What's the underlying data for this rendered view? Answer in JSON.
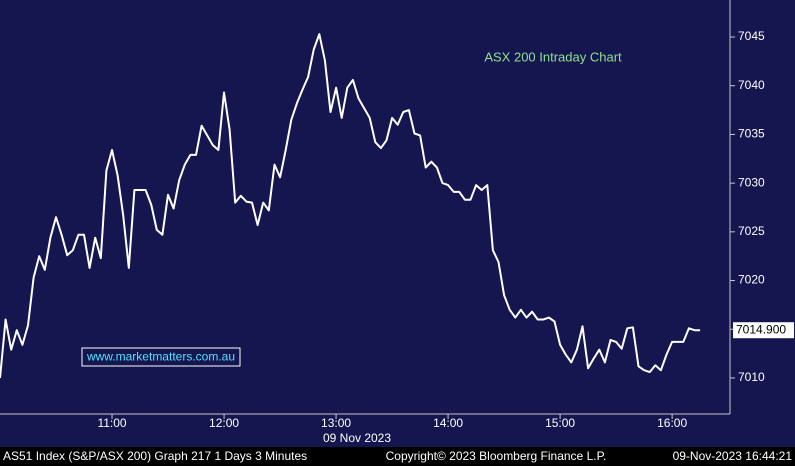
{
  "chart_data": {
    "type": "line",
    "annotation": "ASX 200 Intraday Chart",
    "watermark": "www.marketmatters.com.au",
    "date_label": "09 Nov 2023",
    "footer": {
      "left": "AS51 Index (S&P/ASX 200) Graph 217 1 Days 3 Minutes",
      "center": "Copyright© 2023 Bloomberg Finance L.P.",
      "right": "09-Nov-2023 16:44:21"
    },
    "color": "#ffffff",
    "x": [
      600,
      603,
      606,
      609,
      612,
      615,
      618,
      621,
      624,
      627,
      630,
      633,
      636,
      639,
      642,
      645,
      648,
      651,
      654,
      657,
      660,
      663,
      666,
      669,
      672,
      675,
      678,
      681,
      684,
      687,
      690,
      693,
      696,
      699,
      702,
      705,
      708,
      711,
      714,
      717,
      720,
      723,
      726,
      729,
      732,
      735,
      738,
      741,
      744,
      747,
      750,
      753,
      756,
      759,
      762,
      765,
      768,
      771,
      774,
      777,
      780,
      783,
      786,
      789,
      792,
      795,
      798,
      801,
      804,
      807,
      810,
      813,
      816,
      819,
      822,
      825,
      828,
      831,
      834,
      837,
      840,
      843,
      846,
      849,
      852,
      855,
      858,
      861,
      864,
      867,
      870,
      873,
      876,
      879,
      882,
      885,
      888,
      891,
      894,
      897,
      900,
      903,
      906,
      909,
      912,
      915,
      918,
      921,
      924,
      927,
      930,
      933,
      936,
      939,
      942,
      945,
      948,
      951,
      954,
      957,
      960,
      963,
      966,
      969,
      972,
      975
    ],
    "values": [
      7010.0,
      7016.0,
      7012.9,
      7014.9,
      7013.4,
      7015.4,
      7020.3,
      7022.5,
      7021.1,
      7024.4,
      7026.5,
      7024.7,
      7022.6,
      7023.1,
      7024.7,
      7024.7,
      7021.3,
      7024.4,
      7022.3,
      7031.3,
      7033.4,
      7030.8,
      7026.7,
      7021.3,
      7029.3,
      7029.3,
      7029.3,
      7027.8,
      7025.2,
      7024.7,
      7028.8,
      7027.4,
      7030.3,
      7031.9,
      7032.9,
      7032.9,
      7035.9,
      7034.9,
      7033.9,
      7033.4,
      7039.3,
      7035.5,
      7028.0,
      7028.7,
      7028.1,
      7028.0,
      7025.7,
      7028.0,
      7027.2,
      7031.9,
      7030.6,
      7033.4,
      7036.5,
      7038.2,
      7039.6,
      7040.9,
      7043.7,
      7045.3,
      7042.6,
      7037.3,
      7039.8,
      7036.7,
      7039.8,
      7040.6,
      7038.7,
      7037.7,
      7036.7,
      7034.2,
      7033.6,
      7034.4,
      7036.7,
      7036.0,
      7037.3,
      7037.5,
      7035.1,
      7034.9,
      7031.6,
      7032.2,
      7031.6,
      7030.0,
      7029.8,
      7029.1,
      7029.1,
      7028.3,
      7028.3,
      7029.8,
      7029.3,
      7029.8,
      7023.1,
      7021.9,
      7018.5,
      7017.0,
      7016.2,
      7017.0,
      7016.2,
      7016.8,
      7016.0,
      7016.0,
      7016.2,
      7015.8,
      7013.4,
      7012.4,
      7011.6,
      7012.9,
      7015.3,
      7011.0,
      7012.0,
      7012.9,
      7011.6,
      7013.9,
      7013.7,
      7013.0,
      7015.1,
      7015.2,
      7011.2,
      7010.8,
      7010.6,
      7011.3,
      7010.8,
      7012.4,
      7013.7,
      7013.7,
      7013.7,
      7015.1,
      7014.9,
      7014.9
    ],
    "last_price": {
      "value": 7014.9,
      "label": "7014.900"
    },
    "xlim": [
      600,
      991
    ],
    "xticks": [
      {
        "value": 660,
        "label": "11:00"
      },
      {
        "value": 720,
        "label": "12:00"
      },
      {
        "value": 780,
        "label": "13:00"
      },
      {
        "value": 840,
        "label": "14:00"
      },
      {
        "value": 900,
        "label": "15:00"
      },
      {
        "value": 960,
        "label": "16:00"
      }
    ],
    "ylim": [
      7006.3,
      7048.8
    ],
    "yticks": [
      7010,
      7015,
      7020,
      7025,
      7030,
      7035,
      7040,
      7045
    ],
    "grid": false
  }
}
